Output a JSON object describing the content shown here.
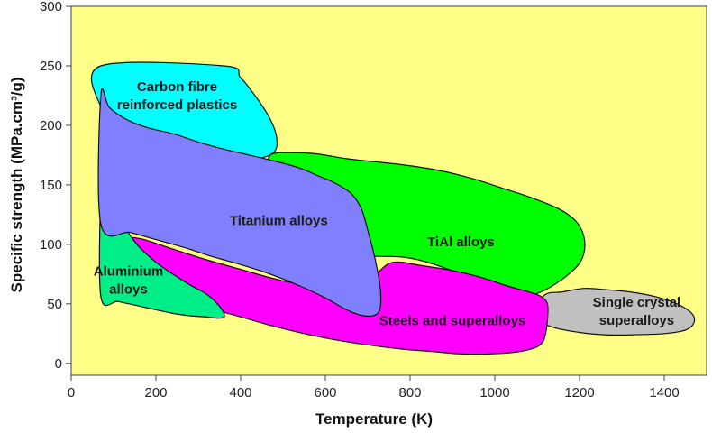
{
  "chart_data": {
    "type": "area",
    "title": "",
    "xlabel": "Temperature (K)",
    "ylabel": "Specific strength (MPa.cm³/g)",
    "xlim": [
      0,
      1500
    ],
    "ylim": [
      -10,
      300
    ],
    "x_ticks": [
      0,
      200,
      400,
      600,
      800,
      1000,
      1200,
      1400
    ],
    "y_ticks": [
      0,
      50,
      100,
      150,
      200,
      250,
      300
    ],
    "grid": false,
    "plot_background": "#ffff88",
    "regions": [
      {
        "name": "Carbon fibre reinforced plastics",
        "label_lines": [
          "Carbon fibre",
          "reinforced plastics"
        ],
        "label_at": [
          250,
          225
        ],
        "color": "#00ffff",
        "points": [
          [
            70,
            250
          ],
          [
            360,
            250
          ],
          [
            400,
            240
          ],
          [
            440,
            222
          ],
          [
            470,
            205
          ],
          [
            485,
            190
          ],
          [
            480,
            178
          ],
          [
            440,
            172
          ],
          [
            380,
            172
          ],
          [
            320,
            175
          ],
          [
            260,
            180
          ],
          [
            200,
            188
          ],
          [
            140,
            198
          ],
          [
            90,
            210
          ],
          [
            70,
            215
          ]
        ]
      },
      {
        "name": "TiAl alloys",
        "label_lines": [
          "TiAl alloys"
        ],
        "label_at": [
          920,
          102
        ],
        "color": "#00ff00",
        "points": [
          [
            470,
            175
          ],
          [
            520,
            177
          ],
          [
            580,
            176
          ],
          [
            650,
            172
          ],
          [
            700,
            170
          ],
          [
            780,
            167
          ],
          [
            870,
            162
          ],
          [
            950,
            155
          ],
          [
            1020,
            147
          ],
          [
            1080,
            140
          ],
          [
            1150,
            130
          ],
          [
            1190,
            120
          ],
          [
            1210,
            107
          ],
          [
            1210,
            92
          ],
          [
            1190,
            80
          ],
          [
            1140,
            66
          ],
          [
            1090,
            58
          ],
          [
            1040,
            60
          ],
          [
            980,
            66
          ],
          [
            920,
            75
          ],
          [
            850,
            84
          ],
          [
            790,
            89
          ],
          [
            720,
            90
          ],
          [
            650,
            90
          ],
          [
            560,
            100
          ],
          [
            500,
            130
          ],
          [
            470,
            160
          ]
        ]
      },
      {
        "name": "Single crystal superalloys",
        "label_lines": [
          "Single crystal",
          "superalloys"
        ],
        "label_at": [
          1335,
          44
        ],
        "color": "#c0c0c0",
        "points": [
          [
            1120,
            58
          ],
          [
            1160,
            60
          ],
          [
            1210,
            63
          ],
          [
            1260,
            62
          ],
          [
            1320,
            60
          ],
          [
            1380,
            56
          ],
          [
            1430,
            50
          ],
          [
            1465,
            42
          ],
          [
            1470,
            34
          ],
          [
            1450,
            28
          ],
          [
            1400,
            25
          ],
          [
            1330,
            24
          ],
          [
            1260,
            24
          ],
          [
            1200,
            26
          ],
          [
            1140,
            30
          ],
          [
            1105,
            36
          ],
          [
            1095,
            45
          ]
        ]
      },
      {
        "name": "Steels and superalloys",
        "label_lines": [
          "Steels and superalloys"
        ],
        "label_at": [
          900,
          36
        ],
        "color": "#ff00ff",
        "points": [
          [
            160,
            105
          ],
          [
            240,
            96
          ],
          [
            320,
            87
          ],
          [
            400,
            79
          ],
          [
            480,
            71
          ],
          [
            560,
            65
          ],
          [
            640,
            62
          ],
          [
            680,
            62
          ],
          [
            720,
            75
          ],
          [
            760,
            85
          ],
          [
            830,
            82
          ],
          [
            900,
            78
          ],
          [
            970,
            72
          ],
          [
            1030,
            65
          ],
          [
            1080,
            60
          ],
          [
            1110,
            56
          ],
          [
            1125,
            48
          ],
          [
            1120,
            25
          ],
          [
            1105,
            15
          ],
          [
            1060,
            10
          ],
          [
            990,
            8
          ],
          [
            920,
            8
          ],
          [
            850,
            10
          ],
          [
            780,
            12
          ],
          [
            690,
            16
          ],
          [
            590,
            22
          ],
          [
            480,
            31
          ],
          [
            370,
            42
          ],
          [
            250,
            52
          ],
          [
            160,
            56
          ],
          [
            140,
            60
          ],
          [
            140,
            100
          ]
        ]
      },
      {
        "name": "Aluminium alloys",
        "label_lines": [
          "Aluminium",
          "alloys"
        ],
        "label_at": [
          135,
          70
        ],
        "color": "#00ee88",
        "points": [
          [
            70,
            140
          ],
          [
            80,
            135
          ],
          [
            100,
            125
          ],
          [
            130,
            112
          ],
          [
            160,
            98
          ],
          [
            200,
            85
          ],
          [
            240,
            75
          ],
          [
            280,
            66
          ],
          [
            320,
            58
          ],
          [
            350,
            48
          ],
          [
            362,
            40
          ],
          [
            350,
            38
          ],
          [
            320,
            39
          ],
          [
            280,
            40
          ],
          [
            240,
            42
          ],
          [
            200,
            45
          ],
          [
            150,
            49
          ],
          [
            110,
            52
          ],
          [
            70,
            56
          ]
        ]
      },
      {
        "name": "Titanium alloys",
        "label_lines": [
          "Titanium alloys"
        ],
        "label_at": [
          490,
          120
        ],
        "color": "#8080ff",
        "points": [
          [
            70,
            225
          ],
          [
            90,
            215
          ],
          [
            130,
            205
          ],
          [
            180,
            198
          ],
          [
            240,
            193
          ],
          [
            300,
            186
          ],
          [
            360,
            180
          ],
          [
            420,
            175
          ],
          [
            480,
            170
          ],
          [
            540,
            164
          ],
          [
            580,
            158
          ],
          [
            620,
            152
          ],
          [
            660,
            143
          ],
          [
            685,
            130
          ],
          [
            700,
            112
          ],
          [
            712,
            96
          ],
          [
            722,
            80
          ],
          [
            730,
            62
          ],
          [
            730,
            48
          ],
          [
            720,
            41
          ],
          [
            690,
            40
          ],
          [
            650,
            45
          ],
          [
            600,
            55
          ],
          [
            540,
            65
          ],
          [
            470,
            75
          ],
          [
            400,
            83
          ],
          [
            330,
            90
          ],
          [
            270,
            97
          ],
          [
            200,
            104
          ],
          [
            140,
            110
          ],
          [
            70,
            117
          ]
        ]
      }
    ]
  }
}
